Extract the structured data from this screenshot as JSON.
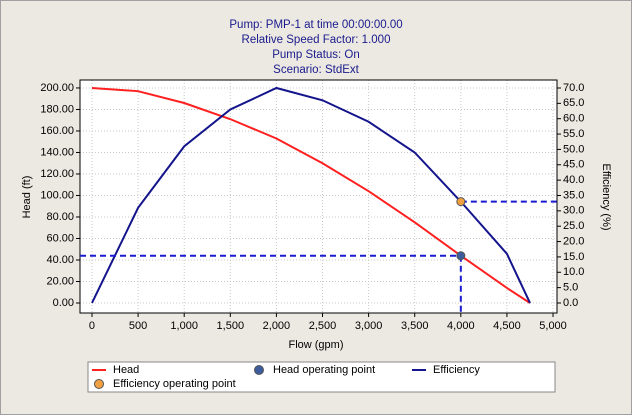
{
  "chart_data": {
    "type": "line",
    "title": [
      "Pump:  PMP-1 at time 00:00:00.00",
      "Relative Speed Factor:  1.000",
      "Pump Status:  On",
      "Scenario:  StdExt"
    ],
    "x_label": "Flow (gpm)",
    "y_label": "Head (ft)",
    "y2_label": "Efficiency (%)",
    "x": [
      0,
      500,
      1000,
      1500,
      2000,
      2500,
      3000,
      3500,
      4000,
      4500,
      4750
    ],
    "series": [
      {
        "name": "Head",
        "color": "#ff2020",
        "values": [
          200,
          197,
          186,
          171,
          153,
          130,
          104,
          75,
          44,
          14,
          0
        ]
      },
      {
        "name": "Efficiency",
        "color": "#14148c",
        "axis": "y2",
        "values": [
          0,
          31,
          51,
          63,
          70,
          66,
          59,
          49,
          33,
          16,
          0
        ]
      }
    ],
    "operating_points": [
      {
        "name": "Head operating point",
        "color": "#3d5c9e",
        "x": 4000,
        "y": 44
      },
      {
        "name": "Efficiency operating point",
        "color": "#f0a040",
        "x": 4000,
        "y": 33,
        "axis": "y2"
      }
    ],
    "xlim": [
      -130,
      5043
    ],
    "ylim": [
      -9.3,
      207.4
    ],
    "y2lim": [
      -3.26,
      72.6
    ],
    "xticks": [
      0,
      500,
      {
        "value": 1000,
        "label": "1,000"
      },
      {
        "value": 1500,
        "label": "1,500"
      },
      {
        "value": 2000,
        "label": "2,000"
      },
      {
        "value": 2500,
        "label": "2,500"
      },
      {
        "value": 3000,
        "label": "3,000"
      },
      {
        "value": 3500,
        "label": "3,500"
      },
      {
        "value": 4000,
        "label": "4,000"
      },
      {
        "value": 4500,
        "label": "4,500"
      },
      {
        "value": 5000,
        "label": "5,000"
      }
    ],
    "yticks": [
      {
        "value": 0,
        "label": "0.00"
      },
      {
        "value": 20,
        "label": "20.00"
      },
      {
        "value": 40,
        "label": "40.00"
      },
      {
        "value": 60,
        "label": "60.00"
      },
      {
        "value": 80,
        "label": "80.00"
      },
      {
        "value": 100,
        "label": "100.00"
      },
      {
        "value": 120,
        "label": "120.00"
      },
      {
        "value": 140,
        "label": "140.00"
      },
      {
        "value": 160,
        "label": "160.00"
      },
      {
        "value": 180,
        "label": "180.00"
      },
      {
        "value": 200,
        "label": "200.00"
      }
    ],
    "y2ticks": [
      {
        "value": 0,
        "label": "0.0"
      },
      {
        "value": 5,
        "label": "5.0"
      },
      {
        "value": 10,
        "label": "10.0"
      },
      {
        "value": 15,
        "label": "15.0"
      },
      {
        "value": 20,
        "label": "20.0"
      },
      {
        "value": 25,
        "label": "25.0"
      },
      {
        "value": 30,
        "label": "30.0"
      },
      {
        "value": 35,
        "label": "35.0"
      },
      {
        "value": 40,
        "label": "40.0"
      },
      {
        "value": 45,
        "label": "45.0"
      },
      {
        "value": 50,
        "label": "50.0"
      },
      {
        "value": 55,
        "label": "55.0"
      },
      {
        "value": 60,
        "label": "60.0"
      },
      {
        "value": 65,
        "label": "65.0"
      },
      {
        "value": 70,
        "label": "70.0"
      }
    ],
    "grid": true
  }
}
